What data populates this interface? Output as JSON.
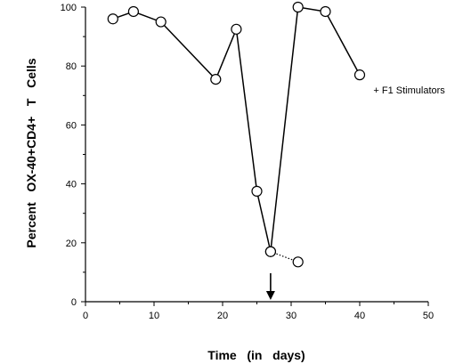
{
  "chart_data": {
    "type": "line",
    "title": "",
    "xlabel": "Time   (in   days)",
    "ylabel": "Percent   OX-40+CD4+   T   Cells",
    "xlim": [
      0,
      50
    ],
    "ylim": [
      0,
      100
    ],
    "xticks": [
      0,
      10,
      20,
      30,
      40,
      50
    ],
    "yticks": [
      0,
      20,
      40,
      60,
      80,
      100
    ],
    "grid": false,
    "series": [
      {
        "line_style": "solid",
        "marker": "open-circle",
        "points": [
          {
            "x": 4,
            "y": 96
          },
          {
            "x": 7,
            "y": 98.5
          },
          {
            "x": 11,
            "y": 95
          },
          {
            "x": 19,
            "y": 75.5
          },
          {
            "x": 22,
            "y": 92.5
          },
          {
            "x": 25,
            "y": 37.5
          },
          {
            "x": 27,
            "y": 17
          },
          {
            "x": 31,
            "y": 100
          },
          {
            "x": 35,
            "y": 98.5
          },
          {
            "x": 40,
            "y": 77
          }
        ]
      },
      {
        "line_style": "dotted",
        "marker": "open-circle",
        "points": [
          {
            "x": 27,
            "y": 17
          },
          {
            "x": 31,
            "y": 13.5
          }
        ]
      }
    ],
    "annotations": [
      {
        "type": "text",
        "text": "+ F1  Stimulators",
        "x": 42,
        "y": 75
      },
      {
        "type": "arrow",
        "direction": "down",
        "x": 27
      }
    ]
  }
}
